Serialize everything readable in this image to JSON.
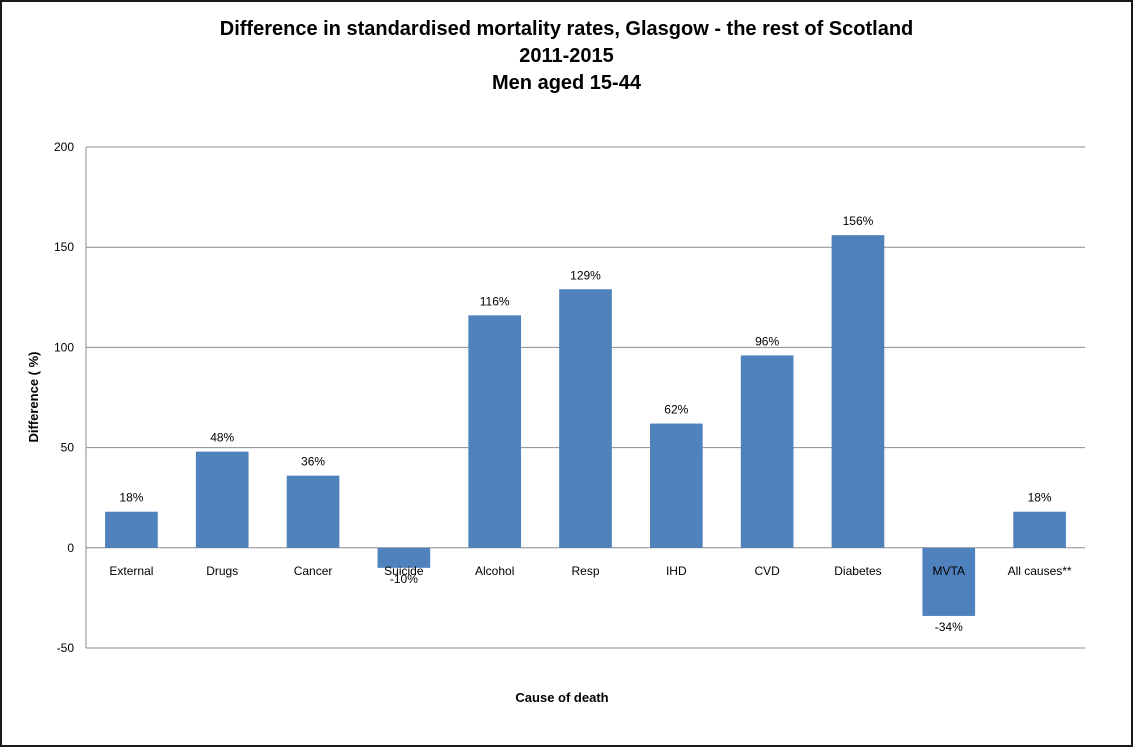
{
  "chart_data": {
    "type": "bar",
    "title_lines": [
      "Difference in standardised mortality rates, Glasgow - the rest of Scotland",
      "2011-2015",
      "Men aged 15-44"
    ],
    "xlabel": "Cause of death",
    "ylabel": "Difference ( %)",
    "ylim": [
      -50,
      200
    ],
    "yticks": [
      "200",
      "150",
      "100",
      "50",
      "0",
      "-50"
    ],
    "ytick_values": [
      200,
      150,
      100,
      50,
      0,
      -50
    ],
    "grid": true,
    "legend": "none",
    "bar_color": "#4f81bd",
    "categories": [
      "External",
      "Drugs",
      "Cancer",
      "Suicide",
      "Alcohol",
      "Resp",
      "IHD",
      "CVD",
      "Diabetes",
      "MVTA",
      "All causes**"
    ],
    "values": [
      18,
      48,
      36,
      -10,
      116,
      129,
      62,
      96,
      156,
      -34,
      18
    ],
    "data_labels": [
      "18%",
      "48%",
      "36%",
      "-10%",
      "116%",
      "129%",
      "62%",
      "96%",
      "156%",
      "-34%",
      "18%"
    ]
  }
}
